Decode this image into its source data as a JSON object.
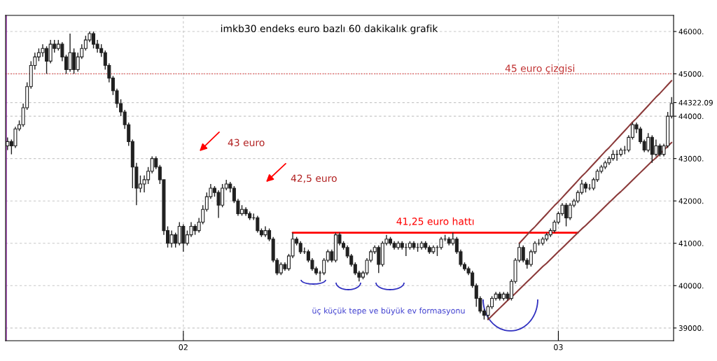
{
  "chart_data": {
    "type": "candlestick",
    "title": "imkb30 endeks euro bazlı 60 dakikalık grafik",
    "color": "#202020",
    "categories": [
      null,
      null,
      null,
      null,
      null,
      null,
      null,
      null,
      null,
      null,
      null,
      null,
      null,
      null,
      null,
      null,
      null,
      null,
      null,
      null,
      null,
      null,
      null,
      null,
      null,
      null,
      null,
      null,
      null,
      null,
      null,
      null,
      null,
      null,
      null,
      null,
      null,
      null,
      null,
      null,
      null,
      null,
      null,
      null,
      null,
      "02",
      null,
      null,
      null,
      null,
      null,
      null,
      null,
      null,
      null,
      null,
      null,
      null,
      null,
      null,
      null,
      null,
      null,
      null,
      null,
      null,
      null,
      null,
      null,
      null,
      null,
      null,
      null,
      null,
      null,
      null,
      null,
      null,
      null,
      null,
      null,
      null,
      null,
      null,
      null,
      null,
      null,
      null,
      null,
      null,
      null,
      null,
      null,
      null,
      null,
      null,
      null,
      null,
      null,
      null,
      null,
      null,
      null,
      null,
      null,
      null,
      null,
      null,
      null,
      null,
      null,
      null,
      null,
      null,
      null,
      null,
      null,
      null,
      null,
      null,
      null,
      null,
      null,
      null,
      null,
      null,
      null,
      null,
      null,
      null,
      null,
      null,
      null,
      null,
      null,
      null,
      null,
      null,
      null,
      null,
      null,
      "03",
      null,
      null,
      null,
      null,
      null,
      null,
      null,
      null,
      null,
      null,
      null,
      null,
      null,
      null,
      null,
      null,
      null,
      null,
      null,
      null,
      null,
      null,
      null,
      null,
      null,
      null,
      null,
      null,
      null
    ],
    "ohlc": [
      [
        43300,
        43500,
        43200,
        43400
      ],
      [
        43400,
        43450,
        43100,
        43300
      ],
      [
        43300,
        43750,
        43250,
        43700
      ],
      [
        43700,
        43900,
        43650,
        43800
      ],
      [
        43800,
        44300,
        43750,
        44200
      ],
      [
        44200,
        44800,
        44150,
        44700
      ],
      [
        44700,
        45300,
        44650,
        45200
      ],
      [
        45200,
        45500,
        45100,
        45400
      ],
      [
        45400,
        45600,
        45300,
        45500
      ],
      [
        45500,
        45700,
        45400,
        45600
      ],
      [
        45600,
        45650,
        45000,
        45300
      ],
      [
        45300,
        45800,
        45250,
        45700
      ],
      [
        45700,
        45800,
        45500,
        45600
      ],
      [
        45600,
        45800,
        45550,
        45700
      ],
      [
        45700,
        45750,
        45300,
        45400
      ],
      [
        45400,
        45450,
        45000,
        45100
      ],
      [
        45100,
        45950,
        45050,
        45500
      ],
      [
        45500,
        45600,
        45000,
        45100
      ],
      [
        45100,
        45500,
        45050,
        45400
      ],
      [
        45400,
        45700,
        45350,
        45600
      ],
      [
        45600,
        45900,
        45550,
        45800
      ],
      [
        45800,
        46000,
        45750,
        45950
      ],
      [
        45950,
        46000,
        45600,
        45700
      ],
      [
        45700,
        45800,
        45500,
        45600
      ],
      [
        45600,
        45700,
        45400,
        45500
      ],
      [
        45500,
        45550,
        45100,
        45200
      ],
      [
        45200,
        45250,
        44800,
        44900
      ],
      [
        44900,
        44950,
        44500,
        44600
      ],
      [
        44600,
        44650,
        44200,
        44300
      ],
      [
        44300,
        44400,
        44000,
        44100
      ],
      [
        44100,
        44150,
        43700,
        43800
      ],
      [
        43800,
        43850,
        43300,
        43400
      ],
      [
        43400,
        43450,
        42300,
        42800
      ],
      [
        42800,
        42900,
        41900,
        42300
      ],
      [
        42300,
        42600,
        42200,
        42400
      ],
      [
        42400,
        42600,
        42200,
        42500
      ],
      [
        42500,
        42800,
        42400,
        42700
      ],
      [
        42700,
        43050,
        42650,
        43000
      ],
      [
        43000,
        43050,
        42750,
        42800
      ],
      [
        42800,
        42850,
        42400,
        42500
      ],
      [
        42500,
        42500,
        41200,
        41300
      ],
      [
        41300,
        41400,
        40900,
        41000
      ],
      [
        41000,
        41300,
        40900,
        41200
      ],
      [
        41200,
        41250,
        40900,
        41000
      ],
      [
        41000,
        41500,
        40950,
        41400
      ],
      [
        41400,
        41450,
        40800,
        41000
      ],
      [
        41000,
        41300,
        40950,
        41200
      ],
      [
        41200,
        41500,
        41150,
        41400
      ],
      [
        41400,
        41450,
        41200,
        41300
      ],
      [
        41300,
        41600,
        41250,
        41500
      ],
      [
        41500,
        41900,
        41450,
        41800
      ],
      [
        41800,
        42200,
        41750,
        42100
      ],
      [
        42100,
        42400,
        42050,
        42300
      ],
      [
        42300,
        42350,
        42100,
        42200
      ],
      [
        42200,
        42250,
        41600,
        41900
      ],
      [
        41900,
        42400,
        41850,
        42300
      ],
      [
        42300,
        42500,
        42250,
        42400
      ],
      [
        42400,
        42450,
        42200,
        42300
      ],
      [
        42300,
        42350,
        41950,
        42000
      ],
      [
        42000,
        42050,
        41650,
        41700
      ],
      [
        41700,
        41900,
        41650,
        41800
      ],
      [
        41800,
        41850,
        41650,
        41700
      ],
      [
        41700,
        41750,
        41550,
        41600
      ],
      [
        41600,
        41700,
        41550,
        41600
      ],
      [
        41600,
        41650,
        41250,
        41300
      ],
      [
        41300,
        41350,
        41150,
        41200
      ],
      [
        41200,
        41400,
        41150,
        41300
      ],
      [
        41300,
        41350,
        41050,
        41100
      ],
      [
        41100,
        41150,
        40550,
        40600
      ],
      [
        40600,
        40650,
        40250,
        40300
      ],
      [
        40300,
        40550,
        40250,
        40500
      ],
      [
        40500,
        40550,
        40350,
        40400
      ],
      [
        40400,
        40750,
        40350,
        40700
      ],
      [
        40700,
        41250,
        40650,
        41100
      ],
      [
        41100,
        41150,
        40950,
        41000
      ],
      [
        41000,
        41050,
        40750,
        40800
      ],
      [
        40800,
        40900,
        40750,
        40800
      ],
      [
        40800,
        40850,
        40550,
        40600
      ],
      [
        40600,
        40650,
        40350,
        40400
      ],
      [
        40400,
        40450,
        40250,
        40300
      ],
      [
        40300,
        40350,
        40100,
        40300
      ],
      [
        40300,
        40650,
        40250,
        40600
      ],
      [
        40600,
        40850,
        40550,
        40800
      ],
      [
        40800,
        40850,
        40550,
        40600
      ],
      [
        40600,
        41250,
        40550,
        41200
      ],
      [
        41200,
        41250,
        40950,
        41000
      ],
      [
        41000,
        41050,
        40850,
        40900
      ],
      [
        40900,
        40950,
        40650,
        40700
      ],
      [
        40700,
        40750,
        40450,
        40500
      ],
      [
        40500,
        40550,
        40250,
        40300
      ],
      [
        40300,
        40350,
        40100,
        40200
      ],
      [
        40200,
        40350,
        40150,
        40300
      ],
      [
        40300,
        40650,
        40250,
        40600
      ],
      [
        40600,
        40850,
        40550,
        40800
      ],
      [
        40800,
        40950,
        40750,
        40900
      ],
      [
        40900,
        40950,
        40300,
        40500
      ],
      [
        40500,
        41050,
        40450,
        41000
      ],
      [
        41000,
        41200,
        40950,
        41100
      ],
      [
        41100,
        41150,
        40950,
        41000
      ],
      [
        41000,
        41050,
        40850,
        40900
      ],
      [
        40900,
        41050,
        40850,
        41000
      ],
      [
        41000,
        41050,
        40850,
        40900
      ],
      [
        40900,
        41000,
        40700,
        40900
      ],
      [
        40900,
        41050,
        40850,
        41000
      ],
      [
        41000,
        41050,
        40850,
        40900
      ],
      [
        40900,
        41000,
        40800,
        40900
      ],
      [
        40900,
        41050,
        40850,
        41000
      ],
      [
        41000,
        41050,
        40850,
        40900
      ],
      [
        40900,
        40950,
        40750,
        40800
      ],
      [
        40800,
        40950,
        40750,
        40900
      ],
      [
        40900,
        40950,
        40700,
        40900
      ],
      [
        40900,
        41150,
        40850,
        41100
      ],
      [
        41100,
        41200,
        41050,
        41100
      ],
      [
        41100,
        41150,
        40950,
        41000
      ],
      [
        41000,
        41250,
        40950,
        41100
      ],
      [
        41100,
        41150,
        40750,
        40800
      ],
      [
        40800,
        40850,
        40450,
        40500
      ],
      [
        40500,
        40550,
        40350,
        40400
      ],
      [
        40400,
        40450,
        40250,
        40300
      ],
      [
        40300,
        40350,
        39950,
        40000
      ],
      [
        40000,
        40050,
        39500,
        39700
      ],
      [
        39700,
        39750,
        39350,
        39400
      ],
      [
        39400,
        39450,
        39200,
        39300
      ],
      [
        39300,
        39550,
        39200,
        39500
      ],
      [
        39500,
        39750,
        39450,
        39700
      ],
      [
        39700,
        39850,
        39650,
        39800
      ],
      [
        39800,
        39850,
        39650,
        39700
      ],
      [
        39700,
        39850,
        39650,
        39800
      ],
      [
        39800,
        39850,
        39650,
        39700
      ],
      [
        39700,
        40150,
        39650,
        40100
      ],
      [
        40100,
        40650,
        40050,
        40600
      ],
      [
        40600,
        41000,
        40550,
        40900
      ],
      [
        40900,
        40950,
        40550,
        40600
      ],
      [
        40600,
        40650,
        40400,
        40500
      ],
      [
        40500,
        40850,
        40450,
        40800
      ],
      [
        40800,
        41050,
        40750,
        41000
      ],
      [
        41000,
        41100,
        40950,
        41000
      ],
      [
        41000,
        41150,
        40950,
        41100
      ],
      [
        41100,
        41250,
        41050,
        41200
      ],
      [
        41200,
        41350,
        41150,
        41300
      ],
      [
        41300,
        41550,
        41250,
        41500
      ],
      [
        41500,
        41750,
        41450,
        41700
      ],
      [
        41700,
        41950,
        41650,
        41900
      ],
      [
        41900,
        41950,
        41400,
        41600
      ],
      [
        41600,
        41950,
        41550,
        41900
      ],
      [
        41900,
        42050,
        41850,
        42000
      ],
      [
        42000,
        42250,
        41950,
        42200
      ],
      [
        42200,
        42500,
        42150,
        42400
      ],
      [
        42400,
        42450,
        42200,
        42300
      ],
      [
        42300,
        42400,
        42250,
        42300
      ],
      [
        42300,
        42550,
        42250,
        42500
      ],
      [
        42500,
        42750,
        42450,
        42700
      ],
      [
        42700,
        42850,
        42650,
        42800
      ],
      [
        42800,
        42950,
        42750,
        42900
      ],
      [
        42900,
        43050,
        42850,
        43000
      ],
      [
        43000,
        43200,
        42950,
        43100
      ],
      [
        43100,
        43200,
        42950,
        43100
      ],
      [
        43100,
        43250,
        43050,
        43200
      ],
      [
        43200,
        43300,
        43100,
        43200
      ],
      [
        43200,
        43550,
        43150,
        43500
      ],
      [
        43500,
        43850,
        43450,
        43800
      ],
      [
        43800,
        43850,
        43600,
        43700
      ],
      [
        43700,
        43750,
        43350,
        43400
      ],
      [
        43400,
        43450,
        43150,
        43200
      ],
      [
        43200,
        43600,
        43150,
        43500
      ],
      [
        43500,
        43550,
        42900,
        43100
      ],
      [
        43100,
        43450,
        43050,
        43300
      ],
      [
        43300,
        43350,
        43050,
        43100
      ],
      [
        43100,
        43350,
        43050,
        43300
      ],
      [
        43300,
        44100,
        43250,
        44000
      ],
      [
        44000,
        44450,
        43950,
        44300
      ]
    ],
    "series": [
      {
        "type": "line",
        "name": "41,25 euro hattı",
        "color": "#ff0000",
        "values": [
          null,
          null,
          null,
          null,
          null,
          null,
          null,
          null,
          null,
          null,
          null,
          null,
          null,
          null,
          null,
          null,
          null,
          null,
          null,
          null,
          null,
          null,
          null,
          null,
          null,
          null,
          null,
          null,
          null,
          null,
          null,
          null,
          null,
          null,
          null,
          null,
          null,
          null,
          null,
          null,
          null,
          null,
          null,
          null,
          null,
          null,
          null,
          null,
          null,
          null,
          null,
          null,
          null,
          null,
          null,
          null,
          null,
          null,
          null,
          null,
          null,
          null,
          null,
          null,
          null,
          null,
          null,
          null,
          null,
          null,
          null,
          null,
          null,
          41250,
          41250,
          41250,
          41250,
          41250,
          41250,
          41250,
          41250,
          41250,
          41250,
          41250,
          41250,
          41250,
          41250,
          41250,
          41250,
          41250,
          41250,
          41250,
          41250,
          41250,
          41250,
          41250,
          41250,
          41250,
          41250,
          41250,
          41250,
          41250,
          41250,
          41250,
          41250,
          41250,
          41250,
          41250,
          41250,
          41250,
          41250,
          41250,
          41250,
          41250,
          41250,
          41250,
          41250,
          41250,
          41250,
          41250,
          41250,
          41250,
          41250,
          41250,
          41250,
          41250,
          41250,
          41250,
          41250,
          41250,
          41250,
          41250,
          41250,
          41250,
          41250,
          41250,
          41250,
          41250,
          41250,
          41250,
          41250,
          41250,
          41250,
          41250,
          41250,
          41250,
          41250,
          null,
          null,
          null,
          null,
          null,
          null,
          null,
          null,
          null,
          null,
          null,
          null,
          null,
          null,
          null,
          null,
          null,
          null,
          null,
          null,
          null,
          null,
          null,
          null
        ]
      },
      {
        "type": "line",
        "color": "#8b3a3a",
        "values": [
          null,
          null,
          null,
          null,
          null,
          null,
          null,
          null,
          null,
          null,
          null,
          null,
          null,
          null,
          null,
          null,
          null,
          null,
          null,
          null,
          null,
          null,
          null,
          null,
          null,
          null,
          null,
          null,
          null,
          null,
          null,
          null,
          null,
          null,
          null,
          null,
          null,
          null,
          null,
          null,
          null,
          null,
          null,
          null,
          null,
          null,
          null,
          null,
          null,
          null,
          null,
          null,
          null,
          null,
          null,
          null,
          null,
          null,
          null,
          null,
          null,
          null,
          null,
          null,
          null,
          null,
          null,
          null,
          null,
          null,
          null,
          null,
          null,
          null,
          null,
          null,
          null,
          null,
          null,
          null,
          null,
          null,
          null,
          null,
          null,
          null,
          null,
          null,
          null,
          null,
          null,
          null,
          null,
          null,
          null,
          null,
          null,
          null,
          null,
          null,
          null,
          null,
          null,
          null,
          null,
          null,
          null,
          null,
          null,
          null,
          null,
          null,
          null,
          null,
          null,
          null,
          null,
          null,
          null,
          null,
          null,
          null,
          null,
          null,
          null,
          null,
          null,
          null,
          null,
          null,
          null,
          41000,
          41100,
          41200,
          41300,
          41390,
          41490,
          41590,
          41690,
          41790,
          41890,
          41980,
          42080,
          42180,
          42280,
          42380,
          42480,
          42580,
          42670,
          42770,
          42870,
          42970,
          43070,
          43170,
          43260,
          43360,
          43460,
          43560,
          43660,
          43760,
          43860,
          43950,
          44050,
          44150,
          44250,
          44350,
          44450,
          44540,
          44640,
          44740,
          44840
        ]
      },
      {
        "type": "line",
        "color": "#8b3a3a",
        "values": [
          null,
          null,
          null,
          null,
          null,
          null,
          null,
          null,
          null,
          null,
          null,
          null,
          null,
          null,
          null,
          null,
          null,
          null,
          null,
          null,
          null,
          null,
          null,
          null,
          null,
          null,
          null,
          null,
          null,
          null,
          null,
          null,
          null,
          null,
          null,
          null,
          null,
          null,
          null,
          null,
          null,
          null,
          null,
          null,
          null,
          null,
          null,
          null,
          null,
          null,
          null,
          null,
          null,
          null,
          null,
          null,
          null,
          null,
          null,
          null,
          null,
          null,
          null,
          null,
          null,
          null,
          null,
          null,
          null,
          null,
          null,
          null,
          null,
          null,
          null,
          null,
          null,
          null,
          null,
          null,
          null,
          null,
          null,
          null,
          null,
          null,
          null,
          null,
          null,
          null,
          null,
          null,
          null,
          null,
          null,
          null,
          null,
          null,
          null,
          null,
          null,
          null,
          null,
          null,
          null,
          null,
          null,
          null,
          null,
          null,
          null,
          null,
          null,
          null,
          null,
          null,
          null,
          null,
          null,
          null,
          null,
          null,
          null,
          39200,
          39290,
          39380,
          39470,
          39560,
          39650,
          39730,
          39820,
          39910,
          40000,
          40090,
          40180,
          40270,
          40360,
          40450,
          40530,
          40620,
          40710,
          40800,
          40890,
          40980,
          41070,
          41160,
          41250,
          41340,
          41420,
          41510,
          41600,
          41690,
          41780,
          41870,
          41960,
          42050,
          42140,
          42220,
          42310,
          42400,
          42490,
          42580,
          42670,
          42760,
          42850,
          42940,
          43020,
          43110,
          43200,
          43290,
          43380
        ]
      }
    ],
    "ylim": [
      38700,
      46380
    ],
    "yticks": [
      {
        "value": 39000,
        "label": "39000."
      },
      {
        "value": 40000,
        "label": "40000."
      },
      {
        "value": 41000,
        "label": "41000."
      },
      {
        "value": 42000,
        "label": "42000."
      },
      {
        "value": 43000,
        "label": "43000."
      },
      {
        "value": 44000,
        "label": "44000."
      },
      {
        "value": 44322.09,
        "label": "44322.09"
      },
      {
        "value": 45000,
        "label": "45000."
      },
      {
        "value": 46000,
        "label": "46000."
      }
    ],
    "ref_lines": [
      {
        "axis": "y",
        "value": 45000,
        "label": "45 euro çizgisi",
        "color": "#e05050",
        "line_style": "dotted"
      }
    ],
    "annotations": [
      "43 euro",
      "42,5 euro",
      "üç küçük tepe ve büyük ev formasyonu"
    ],
    "grid": true
  }
}
